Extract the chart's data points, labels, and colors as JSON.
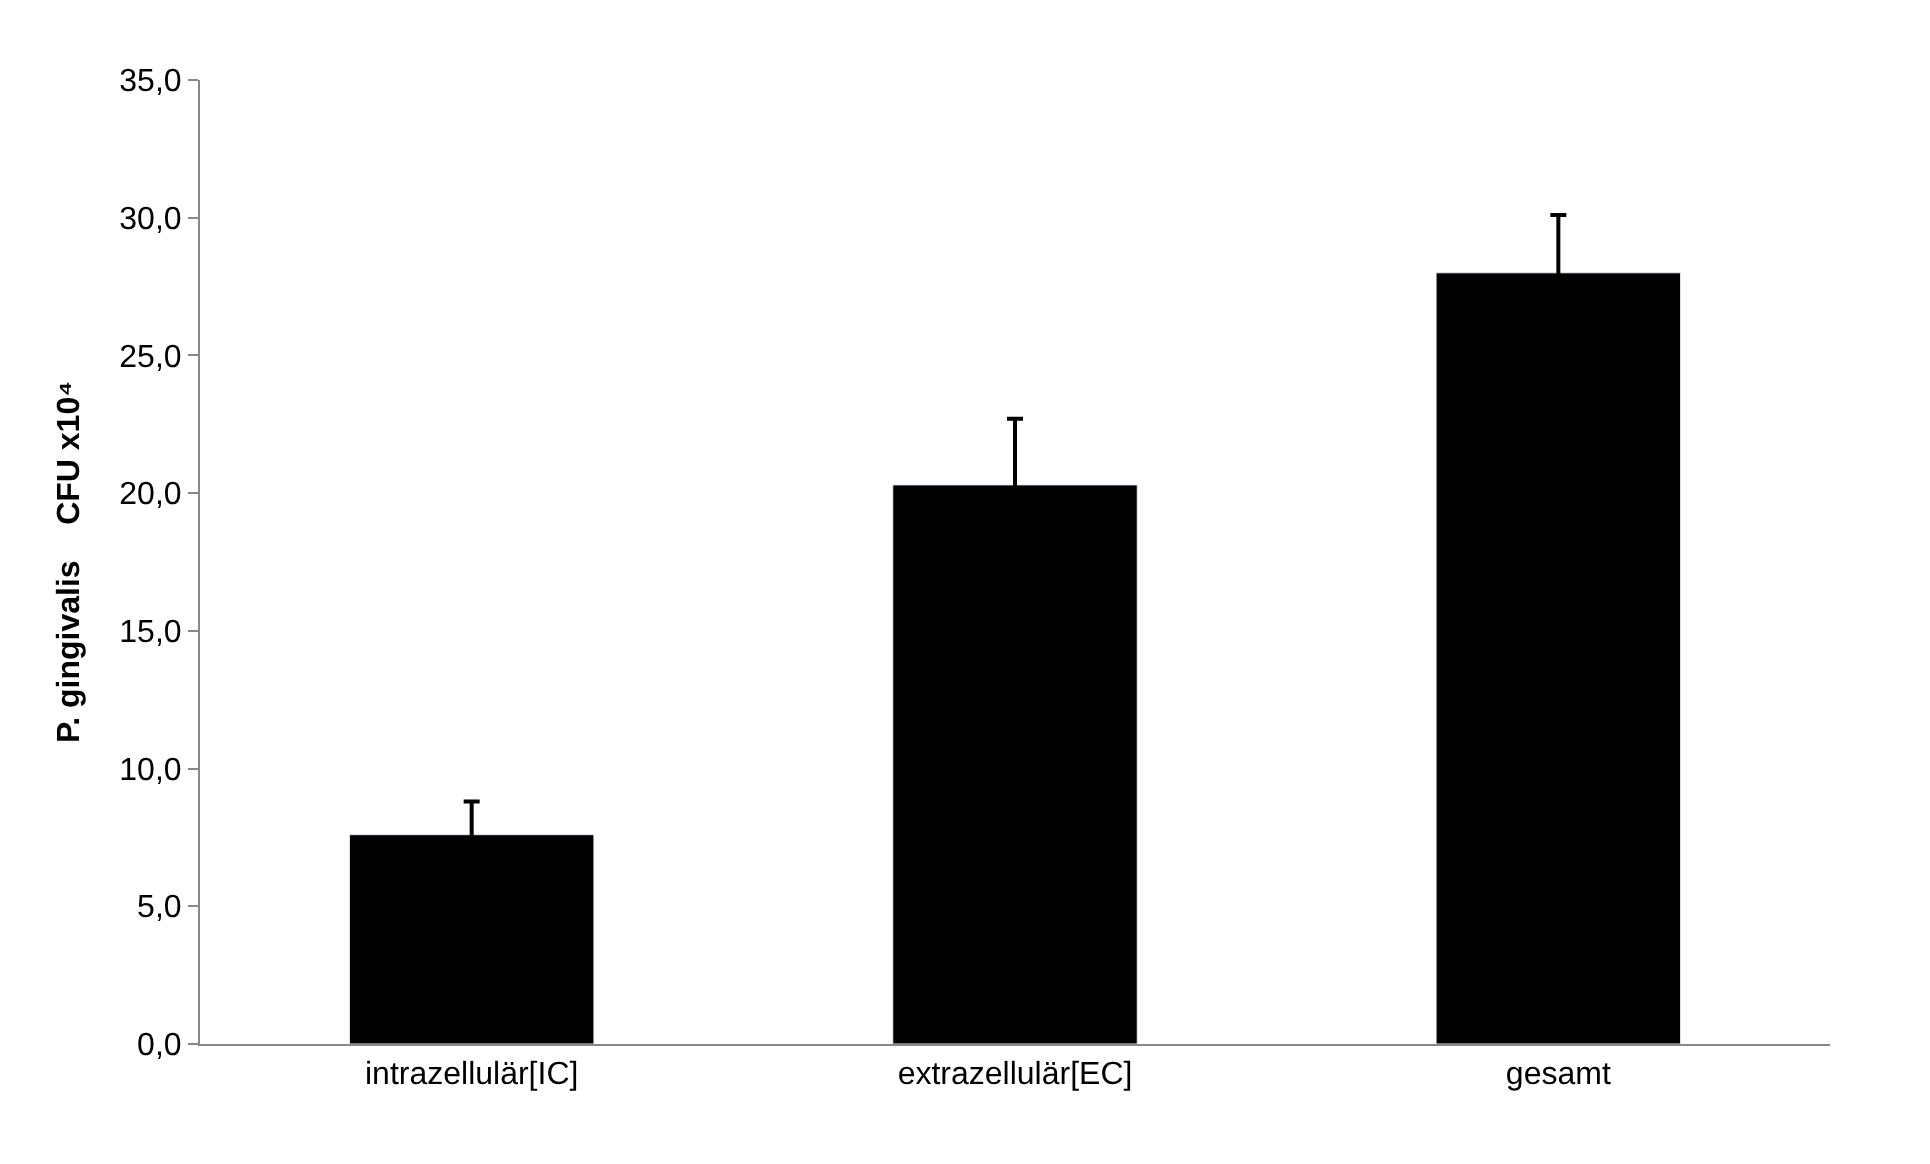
{
  "chart_data": {
    "type": "bar",
    "ylabel": "P. gingivalis    CFU x10⁴",
    "categories": [
      "intrazellulär[IC]",
      "extrazellulär[EC]",
      "gesamt"
    ],
    "values": [
      7.6,
      20.3,
      28.0
    ],
    "errors": [
      1.2,
      2.4,
      2.1
    ],
    "color": "#000000",
    "ylim": [
      0,
      35
    ],
    "yticks": [
      {
        "value": 0,
        "label": "0,0"
      },
      {
        "value": 5,
        "label": "5,0"
      },
      {
        "value": 10,
        "label": "10,0"
      },
      {
        "value": 15,
        "label": "15,0"
      },
      {
        "value": 20,
        "label": "20,0"
      },
      {
        "value": 25,
        "label": "25,0"
      },
      {
        "value": 30,
        "label": "30,0"
      },
      {
        "value": 35,
        "label": "35,0"
      }
    ],
    "grid": false
  }
}
